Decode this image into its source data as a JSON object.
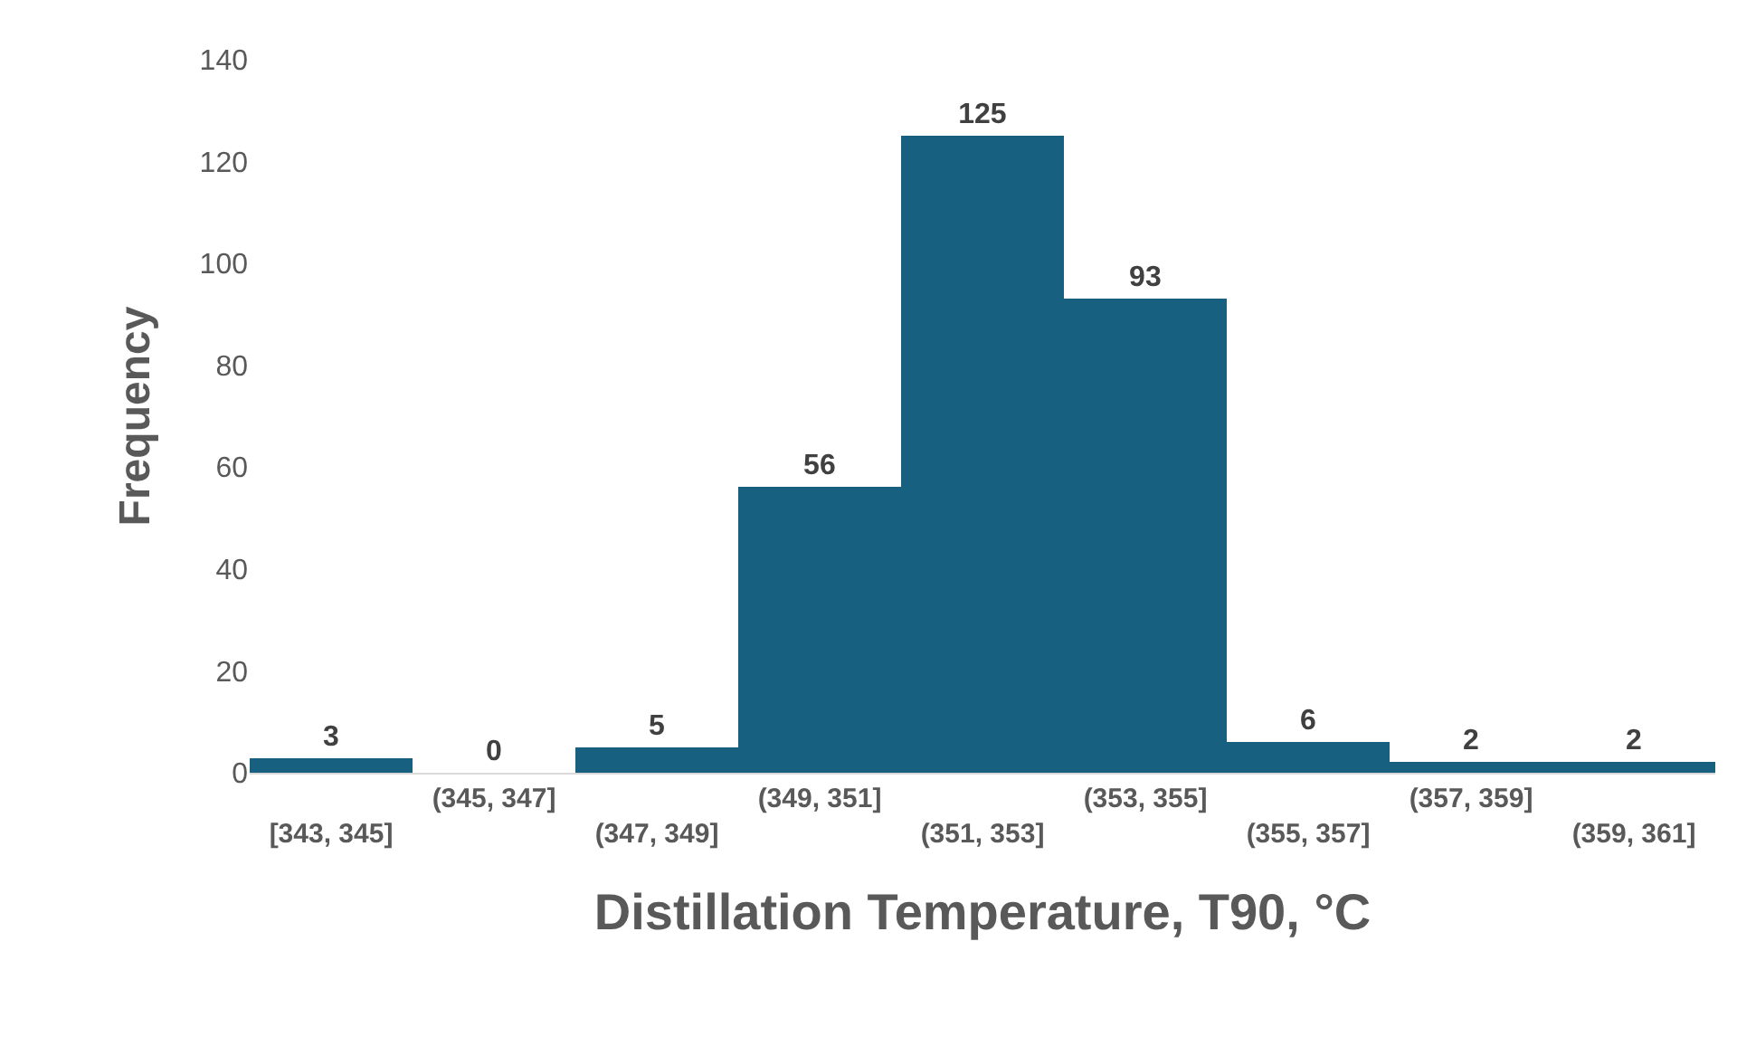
{
  "chart_data": {
    "type": "bar",
    "xlabel": "Distillation Temperature, T90, °C",
    "ylabel": "Frequency",
    "categories": [
      "[343, 345]",
      "(345, 347]",
      "(347, 349]",
      "(349, 351]",
      "(351, 353]",
      "(353, 355]",
      "(355, 357]",
      "(357, 359]",
      "(359, 361]"
    ],
    "values": [
      3,
      0,
      5,
      56,
      125,
      93,
      6,
      2,
      2
    ],
    "color": "#17607f",
    "ylim": [
      0,
      140
    ],
    "yticks": [
      0,
      20,
      40,
      60,
      80,
      100,
      120,
      140
    ],
    "data_labels": true
  }
}
